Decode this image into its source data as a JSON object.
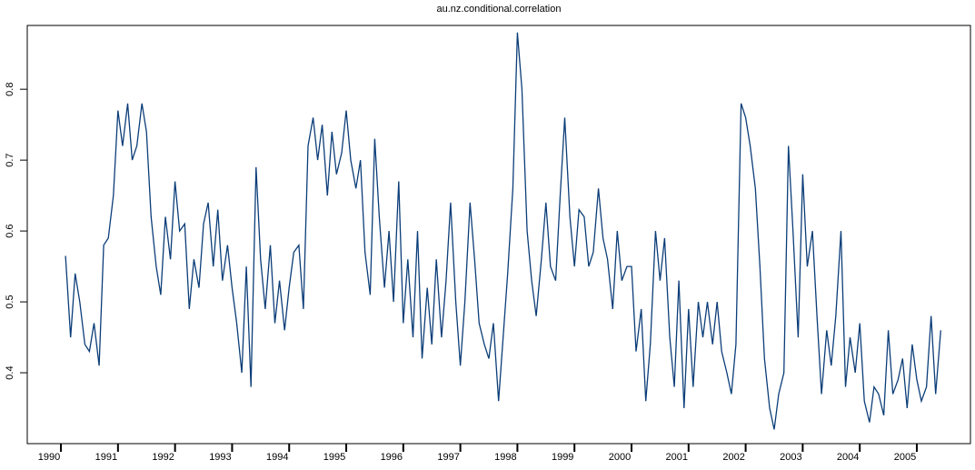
{
  "chart_data": {
    "type": "line",
    "title": "au.nz.conditional.correlation",
    "x": [
      1990.08,
      1990.17,
      1990.25,
      1990.33,
      1990.42,
      1990.5,
      1990.58,
      1990.67,
      1990.75,
      1990.83,
      1990.92,
      1991,
      1991.08,
      1991.17,
      1991.25,
      1991.33,
      1991.42,
      1991.5,
      1991.58,
      1991.67,
      1991.75,
      1991.83,
      1991.92,
      1992,
      1992.08,
      1992.17,
      1992.25,
      1992.33,
      1992.42,
      1992.5,
      1992.58,
      1992.67,
      1992.75,
      1992.83,
      1992.92,
      1993,
      1993.08,
      1993.17,
      1993.25,
      1993.33,
      1993.42,
      1993.5,
      1993.58,
      1993.67,
      1993.75,
      1993.83,
      1993.92,
      1994,
      1994.08,
      1994.17,
      1994.25,
      1994.33,
      1994.42,
      1994.5,
      1994.58,
      1994.67,
      1994.75,
      1994.83,
      1994.92,
      1995,
      1995.08,
      1995.17,
      1995.25,
      1995.33,
      1995.42,
      1995.5,
      1995.58,
      1995.67,
      1995.75,
      1995.83,
      1995.92,
      1996,
      1996.08,
      1996.17,
      1996.25,
      1996.33,
      1996.42,
      1996.5,
      1996.58,
      1996.67,
      1996.75,
      1996.83,
      1996.92,
      1997,
      1997.08,
      1997.17,
      1997.25,
      1997.33,
      1997.42,
      1997.5,
      1997.58,
      1997.67,
      1997.75,
      1997.83,
      1997.92,
      1998,
      1998.08,
      1998.17,
      1998.25,
      1998.33,
      1998.42,
      1998.5,
      1998.58,
      1998.67,
      1998.75,
      1998.83,
      1998.92,
      1999,
      1999.08,
      1999.17,
      1999.25,
      1999.33,
      1999.42,
      1999.5,
      1999.58,
      1999.67,
      1999.75,
      1999.83,
      1999.92,
      2000,
      2000.08,
      2000.17,
      2000.25,
      2000.33,
      2000.42,
      2000.5,
      2000.58,
      2000.67,
      2000.75,
      2000.83,
      2000.92,
      2001,
      2001.08,
      2001.17,
      2001.25,
      2001.33,
      2001.42,
      2001.5,
      2001.58,
      2001.67,
      2001.75,
      2001.83,
      2001.92,
      2002,
      2002.08,
      2002.17,
      2002.25,
      2002.33,
      2002.42,
      2002.5,
      2002.58,
      2002.67,
      2002.75,
      2002.83,
      2002.92,
      2003,
      2003.08,
      2003.17,
      2003.25,
      2003.33,
      2003.42,
      2003.5,
      2003.58,
      2003.67,
      2003.75,
      2003.83,
      2003.92,
      2004,
      2004.08,
      2004.17,
      2004.25,
      2004.33,
      2004.42,
      2004.5,
      2004.58,
      2004.67,
      2004.75,
      2004.83,
      2004.92,
      2005,
      2005.08,
      2005.17,
      2005.25,
      2005.33,
      2005.42
    ],
    "series": [
      {
        "name": "au.nz.conditional.correlation",
        "color": "#0b3d78",
        "values": [
          0.565,
          0.45,
          0.54,
          0.5,
          0.44,
          0.43,
          0.47,
          0.41,
          0.58,
          0.59,
          0.65,
          0.77,
          0.72,
          0.78,
          0.7,
          0.72,
          0.78,
          0.74,
          0.62,
          0.55,
          0.51,
          0.62,
          0.56,
          0.67,
          0.6,
          0.61,
          0.49,
          0.56,
          0.52,
          0.61,
          0.64,
          0.55,
          0.63,
          0.53,
          0.58,
          0.52,
          0.47,
          0.4,
          0.55,
          0.38,
          0.69,
          0.56,
          0.49,
          0.58,
          0.47,
          0.53,
          0.46,
          0.52,
          0.57,
          0.58,
          0.49,
          0.72,
          0.76,
          0.7,
          0.75,
          0.65,
          0.74,
          0.68,
          0.71,
          0.77,
          0.7,
          0.66,
          0.7,
          0.57,
          0.51,
          0.73,
          0.62,
          0.52,
          0.6,
          0.5,
          0.67,
          0.47,
          0.56,
          0.45,
          0.6,
          0.42,
          0.52,
          0.44,
          0.56,
          0.45,
          0.53,
          0.64,
          0.5,
          0.41,
          0.5,
          0.64,
          0.56,
          0.47,
          0.44,
          0.42,
          0.47,
          0.36,
          0.45,
          0.54,
          0.66,
          0.88,
          0.8,
          0.6,
          0.53,
          0.48,
          0.56,
          0.64,
          0.55,
          0.53,
          0.65,
          0.76,
          0.62,
          0.55,
          0.63,
          0.62,
          0.55,
          0.57,
          0.66,
          0.59,
          0.56,
          0.49,
          0.6,
          0.53,
          0.55,
          0.55,
          0.43,
          0.49,
          0.36,
          0.44,
          0.6,
          0.53,
          0.59,
          0.45,
          0.38,
          0.53,
          0.35,
          0.49,
          0.38,
          0.5,
          0.45,
          0.5,
          0.44,
          0.5,
          0.43,
          0.4,
          0.37,
          0.44,
          0.78,
          0.76,
          0.72,
          0.66,
          0.55,
          0.42,
          0.35,
          0.32,
          0.37,
          0.4,
          0.72,
          0.6,
          0.45,
          0.68,
          0.55,
          0.6,
          0.48,
          0.37,
          0.46,
          0.41,
          0.48,
          0.6,
          0.38,
          0.45,
          0.4,
          0.47,
          0.36,
          0.33,
          0.38,
          0.37,
          0.34,
          0.46,
          0.37,
          0.39,
          0.42,
          0.35,
          0.44,
          0.39,
          0.36,
          0.38,
          0.48,
          0.37,
          0.46
        ]
      }
    ],
    "xlim": [
      1989.41,
      2005.94
    ],
    "xticks": [
      1990,
      1991,
      1992,
      1993,
      1994,
      1995,
      1996,
      1997,
      1998,
      1999,
      2000,
      2001,
      2002,
      2003,
      2004,
      2005
    ],
    "ylim": [
      0.3,
      0.89
    ],
    "yticks": [
      0.4,
      0.5,
      0.6,
      0.7,
      0.8
    ]
  }
}
